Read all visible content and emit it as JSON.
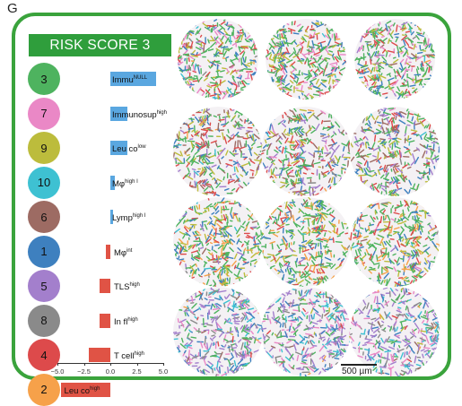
{
  "figure": {
    "panel_letter": "G",
    "title": "RISK SCORE 3",
    "accent_color": "#3aa33c",
    "scale_bar_label": "500 µm"
  },
  "clusters": [
    {
      "id": "3",
      "color": "#4eb35f"
    },
    {
      "id": "7",
      "color": "#ea88c6"
    },
    {
      "id": "9",
      "color": "#bcbc3c"
    },
    {
      "id": "10",
      "color": "#3ec1d2"
    },
    {
      "id": "6",
      "color": "#9d6b63"
    },
    {
      "id": "1",
      "color": "#3e80bf"
    },
    {
      "id": "5",
      "color": "#a37fcc"
    },
    {
      "id": "8",
      "color": "#8a8a8a"
    },
    {
      "id": "4",
      "color": "#dd4a4b"
    },
    {
      "id": "2",
      "color": "#f6a14a"
    }
  ],
  "chart_data": {
    "type": "bar",
    "orientation": "horizontal",
    "categories": [
      "3",
      "7",
      "9",
      "10",
      "6",
      "1",
      "5",
      "8",
      "4",
      "2"
    ],
    "values": [
      4.3,
      1.6,
      1.6,
      0.4,
      0.2,
      -0.4,
      -1.0,
      -1.0,
      -2.0,
      -4.7
    ],
    "labels": [
      {
        "base": "Immu",
        "sup": "NULL"
      },
      {
        "base": "Immunosup",
        "sup": "high"
      },
      {
        "base": "Leu co",
        "sup": "low"
      },
      {
        "base": "Mφ",
        "sup": "high I"
      },
      {
        "base": "Lymp",
        "sup": "high I"
      },
      {
        "base": "Mφ",
        "sup": "int"
      },
      {
        "base": "TLS",
        "sup": "high"
      },
      {
        "base": "In fl",
        "sup": "high"
      },
      {
        "base": "T cell",
        "sup": "high"
      },
      {
        "base": "Leu co",
        "sup": "high"
      }
    ],
    "positive_color": "#5aa7e0",
    "negative_color": "#e05345",
    "xlim": [
      -5.0,
      5.0
    ],
    "xticks": [
      "−5.0",
      "−2.5",
      "0.0",
      "2.5",
      "5.0"
    ],
    "xlabel": "",
    "ylabel": ""
  }
}
